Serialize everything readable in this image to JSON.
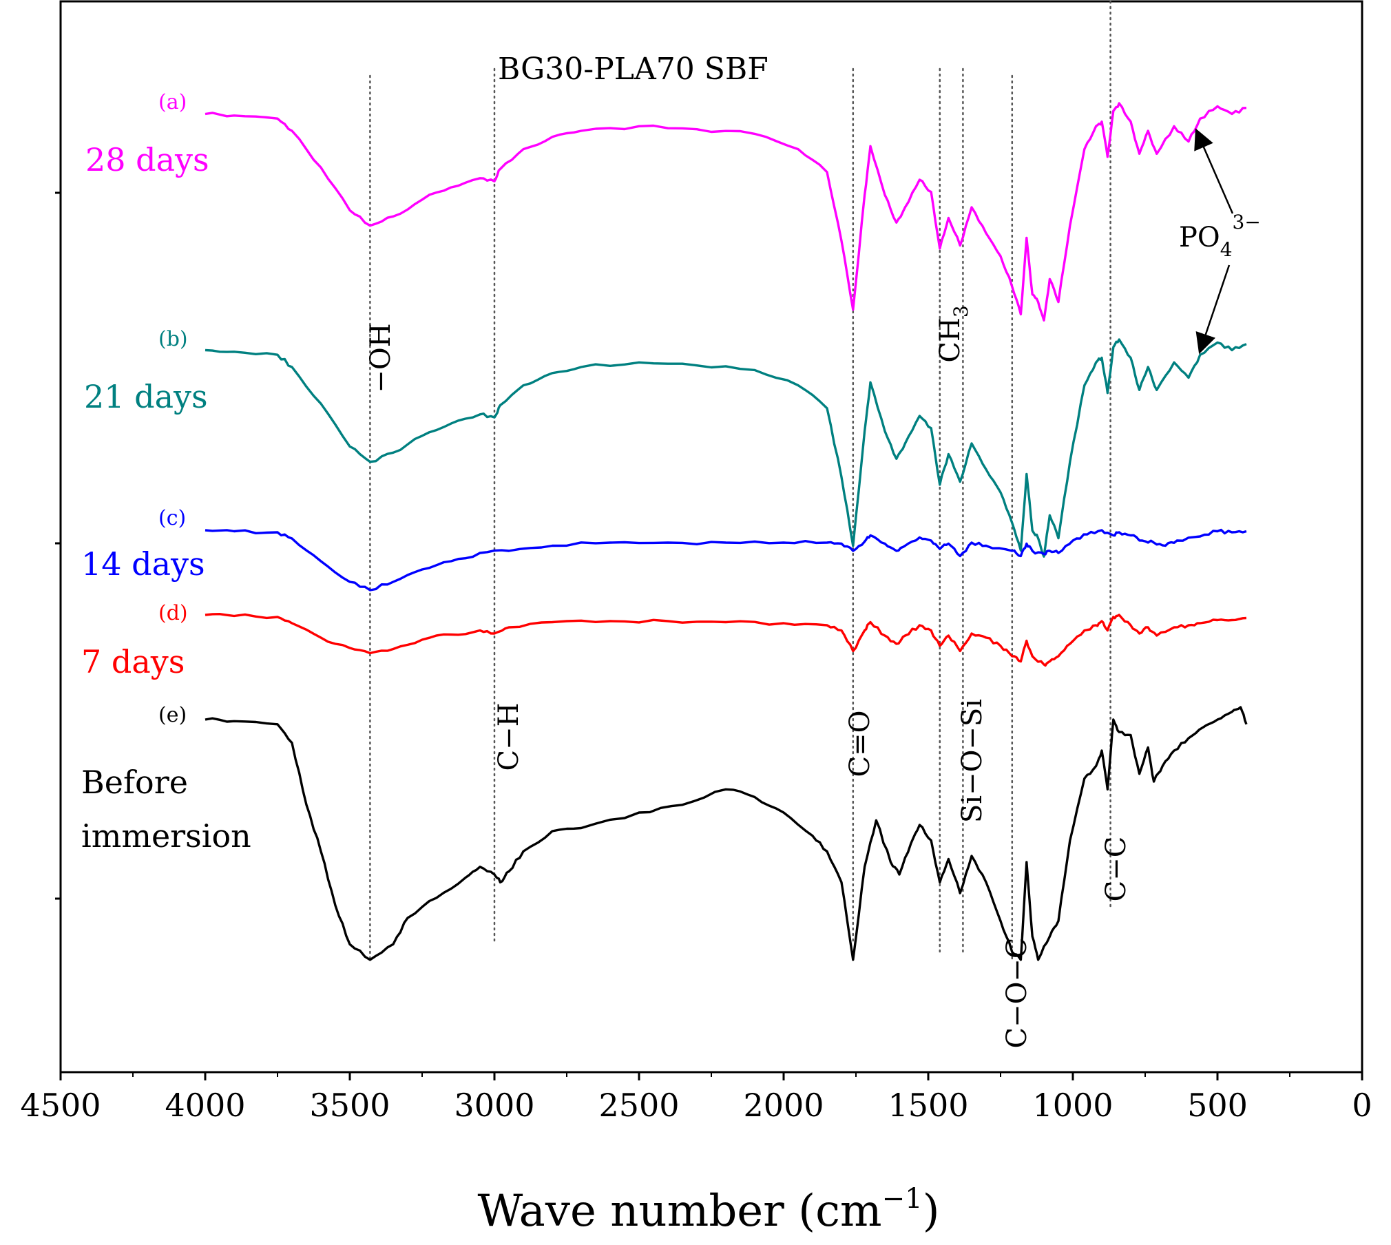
{
  "chart_data": {
    "type": "line",
    "title": "BG30-PLA70 SBF",
    "xlabel": "Wave number (cm⁻¹)",
    "xlabel_main": "Wave number (cm",
    "xlabel_sup": "−1",
    "xlabel_close": ")",
    "ylabel": "",
    "xlim": [
      4500,
      0
    ],
    "x_reversed": true,
    "x_ticks": [
      "4500",
      "4000",
      "3500",
      "3000",
      "2500",
      "2000",
      "1500",
      "1000",
      "500",
      "0"
    ],
    "x_tick_values": [
      4500,
      4000,
      3500,
      3000,
      2500,
      2000,
      1500,
      1000,
      500,
      0
    ],
    "y_ticks_labeled": false,
    "grid": false,
    "legend": "none",
    "series": [
      {
        "letter": "(a)",
        "name": "28 days",
        "color": "#ff00ff",
        "offset": 0,
        "points": [
          [
            4000,
            0.07
          ],
          [
            3900,
            0.08
          ],
          [
            3750,
            0.1
          ],
          [
            3700,
            0.18
          ],
          [
            3600,
            0.42
          ],
          [
            3500,
            0.7
          ],
          [
            3430,
            0.8
          ],
          [
            3350,
            0.74
          ],
          [
            3250,
            0.63
          ],
          [
            3150,
            0.55
          ],
          [
            3050,
            0.49
          ],
          [
            3000,
            0.51
          ],
          [
            2980,
            0.43
          ],
          [
            2900,
            0.3
          ],
          [
            2800,
            0.22
          ],
          [
            2700,
            0.18
          ],
          [
            2500,
            0.15
          ],
          [
            2300,
            0.17
          ],
          [
            2100,
            0.2
          ],
          [
            1950,
            0.3
          ],
          [
            1850,
            0.45
          ],
          [
            1800,
            0.9
          ],
          [
            1760,
            1.35
          ],
          [
            1720,
            0.6
          ],
          [
            1700,
            0.28
          ],
          [
            1650,
            0.6
          ],
          [
            1610,
            0.78
          ],
          [
            1580,
            0.68
          ],
          [
            1530,
            0.5
          ],
          [
            1490,
            0.58
          ],
          [
            1460,
            0.95
          ],
          [
            1430,
            0.75
          ],
          [
            1390,
            0.93
          ],
          [
            1350,
            0.68
          ],
          [
            1300,
            0.85
          ],
          [
            1250,
            1.0
          ],
          [
            1210,
            1.2
          ],
          [
            1180,
            1.38
          ],
          [
            1160,
            0.88
          ],
          [
            1140,
            1.25
          ],
          [
            1120,
            1.3
          ],
          [
            1100,
            1.42
          ],
          [
            1080,
            1.15
          ],
          [
            1050,
            1.3
          ],
          [
            1010,
            0.8
          ],
          [
            960,
            0.3
          ],
          [
            920,
            0.15
          ],
          [
            900,
            0.12
          ],
          [
            880,
            0.35
          ],
          [
            860,
            0.05
          ],
          [
            840,
            0.0
          ],
          [
            800,
            0.12
          ],
          [
            770,
            0.33
          ],
          [
            740,
            0.18
          ],
          [
            710,
            0.33
          ],
          [
            650,
            0.15
          ],
          [
            600,
            0.25
          ],
          [
            560,
            0.1
          ],
          [
            500,
            0.02
          ],
          [
            450,
            0.07
          ],
          [
            400,
            0.03
          ]
        ]
      },
      {
        "letter": "(b)",
        "name": "21 days",
        "color": "#008080",
        "offset": 1,
        "points": [
          [
            4000,
            0.07
          ],
          [
            3900,
            0.08
          ],
          [
            3750,
            0.1
          ],
          [
            3700,
            0.18
          ],
          [
            3600,
            0.42
          ],
          [
            3500,
            0.7
          ],
          [
            3430,
            0.8
          ],
          [
            3350,
            0.74
          ],
          [
            3250,
            0.63
          ],
          [
            3150,
            0.55
          ],
          [
            3050,
            0.49
          ],
          [
            3000,
            0.51
          ],
          [
            2980,
            0.43
          ],
          [
            2900,
            0.3
          ],
          [
            2800,
            0.22
          ],
          [
            2700,
            0.18
          ],
          [
            2500,
            0.15
          ],
          [
            2300,
            0.17
          ],
          [
            2100,
            0.2
          ],
          [
            1950,
            0.3
          ],
          [
            1850,
            0.45
          ],
          [
            1800,
            0.9
          ],
          [
            1760,
            1.35
          ],
          [
            1720,
            0.6
          ],
          [
            1700,
            0.28
          ],
          [
            1650,
            0.6
          ],
          [
            1610,
            0.78
          ],
          [
            1580,
            0.68
          ],
          [
            1530,
            0.5
          ],
          [
            1490,
            0.58
          ],
          [
            1460,
            0.95
          ],
          [
            1430,
            0.75
          ],
          [
            1390,
            0.93
          ],
          [
            1350,
            0.68
          ],
          [
            1300,
            0.85
          ],
          [
            1250,
            1.0
          ],
          [
            1210,
            1.2
          ],
          [
            1180,
            1.38
          ],
          [
            1160,
            0.88
          ],
          [
            1140,
            1.25
          ],
          [
            1120,
            1.3
          ],
          [
            1100,
            1.42
          ],
          [
            1080,
            1.15
          ],
          [
            1050,
            1.3
          ],
          [
            1010,
            0.8
          ],
          [
            960,
            0.3
          ],
          [
            920,
            0.15
          ],
          [
            900,
            0.12
          ],
          [
            880,
            0.35
          ],
          [
            860,
            0.05
          ],
          [
            840,
            0.0
          ],
          [
            800,
            0.12
          ],
          [
            770,
            0.33
          ],
          [
            740,
            0.18
          ],
          [
            710,
            0.33
          ],
          [
            650,
            0.15
          ],
          [
            600,
            0.25
          ],
          [
            560,
            0.1
          ],
          [
            500,
            0.02
          ],
          [
            450,
            0.07
          ],
          [
            400,
            0.03
          ]
        ]
      },
      {
        "letter": "(c)",
        "name": "14 days",
        "color": "#0000ff",
        "offset": 2,
        "points": [
          [
            4000,
            0.0
          ],
          [
            3900,
            0.01
          ],
          [
            3750,
            0.02
          ],
          [
            3700,
            0.08
          ],
          [
            3600,
            0.3
          ],
          [
            3500,
            0.5
          ],
          [
            3430,
            0.58
          ],
          [
            3350,
            0.5
          ],
          [
            3250,
            0.38
          ],
          [
            3150,
            0.3
          ],
          [
            3050,
            0.22
          ],
          [
            2950,
            0.2
          ],
          [
            2800,
            0.15
          ],
          [
            2600,
            0.12
          ],
          [
            2400,
            0.12
          ],
          [
            2200,
            0.12
          ],
          [
            2000,
            0.12
          ],
          [
            1850,
            0.12
          ],
          [
            1800,
            0.13
          ],
          [
            1760,
            0.2
          ],
          [
            1720,
            0.11
          ],
          [
            1700,
            0.05
          ],
          [
            1650,
            0.13
          ],
          [
            1610,
            0.2
          ],
          [
            1580,
            0.15
          ],
          [
            1530,
            0.07
          ],
          [
            1490,
            0.1
          ],
          [
            1460,
            0.18
          ],
          [
            1430,
            0.13
          ],
          [
            1390,
            0.25
          ],
          [
            1350,
            0.12
          ],
          [
            1300,
            0.15
          ],
          [
            1210,
            0.2
          ],
          [
            1180,
            0.25
          ],
          [
            1160,
            0.13
          ],
          [
            1140,
            0.2
          ],
          [
            1100,
            0.23
          ],
          [
            1080,
            0.2
          ],
          [
            1050,
            0.22
          ],
          [
            1000,
            0.1
          ],
          [
            950,
            0.04
          ],
          [
            900,
            0.0
          ],
          [
            860,
            0.05
          ],
          [
            840,
            0.02
          ],
          [
            800,
            0.05
          ],
          [
            760,
            0.1
          ],
          [
            720,
            0.12
          ],
          [
            680,
            0.15
          ],
          [
            640,
            0.1
          ],
          [
            560,
            0.06
          ],
          [
            500,
            0.01
          ],
          [
            450,
            0.02
          ],
          [
            400,
            0.01
          ]
        ]
      },
      {
        "letter": "(d)",
        "name": "7 days",
        "color": "#ff0000",
        "offset": 3,
        "points": [
          [
            4000,
            0.0
          ],
          [
            3900,
            0.01
          ],
          [
            3750,
            0.02
          ],
          [
            3700,
            0.08
          ],
          [
            3600,
            0.22
          ],
          [
            3500,
            0.32
          ],
          [
            3430,
            0.37
          ],
          [
            3350,
            0.33
          ],
          [
            3250,
            0.24
          ],
          [
            3150,
            0.19
          ],
          [
            3050,
            0.15
          ],
          [
            3000,
            0.18
          ],
          [
            2950,
            0.12
          ],
          [
            2800,
            0.07
          ],
          [
            2600,
            0.06
          ],
          [
            2400,
            0.06
          ],
          [
            2200,
            0.07
          ],
          [
            2000,
            0.08
          ],
          [
            1850,
            0.1
          ],
          [
            1800,
            0.15
          ],
          [
            1760,
            0.35
          ],
          [
            1720,
            0.15
          ],
          [
            1700,
            0.07
          ],
          [
            1650,
            0.2
          ],
          [
            1610,
            0.28
          ],
          [
            1580,
            0.2
          ],
          [
            1530,
            0.1
          ],
          [
            1490,
            0.15
          ],
          [
            1460,
            0.3
          ],
          [
            1430,
            0.2
          ],
          [
            1390,
            0.35
          ],
          [
            1350,
            0.18
          ],
          [
            1300,
            0.22
          ],
          [
            1250,
            0.3
          ],
          [
            1210,
            0.4
          ],
          [
            1180,
            0.45
          ],
          [
            1160,
            0.25
          ],
          [
            1140,
            0.4
          ],
          [
            1100,
            0.48
          ],
          [
            1080,
            0.45
          ],
          [
            1050,
            0.4
          ],
          [
            1010,
            0.28
          ],
          [
            960,
            0.15
          ],
          [
            920,
            0.1
          ],
          [
            900,
            0.06
          ],
          [
            880,
            0.15
          ],
          [
            860,
            0.02
          ],
          [
            840,
            0.0
          ],
          [
            800,
            0.1
          ],
          [
            770,
            0.18
          ],
          [
            740,
            0.12
          ],
          [
            710,
            0.2
          ],
          [
            650,
            0.12
          ],
          [
            600,
            0.1
          ],
          [
            560,
            0.08
          ],
          [
            500,
            0.05
          ],
          [
            450,
            0.05
          ],
          [
            400,
            0.03
          ]
        ]
      },
      {
        "letter": "(e)",
        "name": "Before immersion",
        "color": "#000000",
        "offset": 4,
        "points": [
          [
            4000,
            0.0
          ],
          [
            3900,
            0.01
          ],
          [
            3750,
            0.03
          ],
          [
            3700,
            0.15
          ],
          [
            3650,
            0.55
          ],
          [
            3600,
            0.85
          ],
          [
            3550,
            1.2
          ],
          [
            3500,
            1.45
          ],
          [
            3430,
            1.55
          ],
          [
            3350,
            1.45
          ],
          [
            3300,
            1.28
          ],
          [
            3200,
            1.15
          ],
          [
            3100,
            1.02
          ],
          [
            3050,
            0.95
          ],
          [
            3000,
            1.0
          ],
          [
            2980,
            1.05
          ],
          [
            2950,
            0.98
          ],
          [
            2900,
            0.85
          ],
          [
            2800,
            0.72
          ],
          [
            2700,
            0.7
          ],
          [
            2500,
            0.6
          ],
          [
            2350,
            0.55
          ],
          [
            2200,
            0.45
          ],
          [
            2100,
            0.5
          ],
          [
            2000,
            0.6
          ],
          [
            1900,
            0.75
          ],
          [
            1850,
            0.85
          ],
          [
            1800,
            1.05
          ],
          [
            1760,
            1.55
          ],
          [
            1720,
            0.95
          ],
          [
            1680,
            0.65
          ],
          [
            1630,
            0.92
          ],
          [
            1600,
            1.0
          ],
          [
            1560,
            0.8
          ],
          [
            1530,
            0.68
          ],
          [
            1490,
            0.78
          ],
          [
            1460,
            1.05
          ],
          [
            1430,
            0.9
          ],
          [
            1390,
            1.12
          ],
          [
            1350,
            0.88
          ],
          [
            1300,
            1.05
          ],
          [
            1250,
            1.3
          ],
          [
            1210,
            1.5
          ],
          [
            1180,
            1.55
          ],
          [
            1160,
            0.92
          ],
          [
            1140,
            1.4
          ],
          [
            1120,
            1.55
          ],
          [
            1080,
            1.4
          ],
          [
            1050,
            1.3
          ],
          [
            1010,
            0.78
          ],
          [
            960,
            0.38
          ],
          [
            920,
            0.3
          ],
          [
            900,
            0.2
          ],
          [
            880,
            0.45
          ],
          [
            860,
            0.0
          ],
          [
            840,
            0.08
          ],
          [
            800,
            0.1
          ],
          [
            770,
            0.35
          ],
          [
            740,
            0.18
          ],
          [
            720,
            0.4
          ],
          [
            690,
            0.3
          ],
          [
            650,
            0.2
          ],
          [
            600,
            0.12
          ],
          [
            550,
            0.05
          ],
          [
            500,
            0.0
          ],
          [
            450,
            -0.05
          ],
          [
            420,
            -0.08
          ],
          [
            400,
            0.03
          ]
        ]
      }
    ],
    "reference_lines": [
      3430,
      3000,
      1760,
      1460,
      1380,
      1210,
      870
    ],
    "annotations": {
      "oh": "−OH",
      "ch": "C−H",
      "ch3_main": "CH",
      "ch3_sub": "3",
      "co": "C=O",
      "siosi": "Si−O−Si",
      "coc": "C−O−C",
      "cc": "C−C",
      "po4_main": "PO",
      "po4_sub": "4",
      "po4_sup": "3−"
    }
  }
}
